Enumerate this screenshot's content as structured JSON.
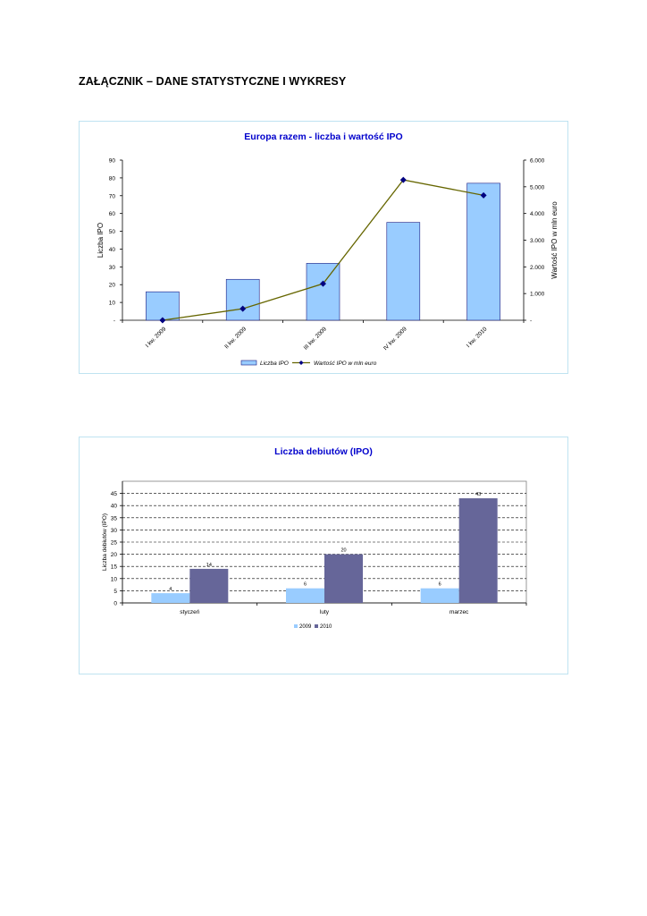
{
  "page": {
    "heading": "ZAŁĄCZNIK – DANE STATYSTYCZNE I WYKRESY"
  },
  "chart_data": [
    {
      "type": "bar+line",
      "title": "Europa razem - liczba i wartość IPO",
      "categories": [
        "I kw. 2009",
        "II kw. 2009",
        "III kw. 2009",
        "IV kw. 2009",
        "I kw. 2010"
      ],
      "series": [
        {
          "name": "Liczba IPO",
          "type": "bar",
          "axis": "left",
          "values": [
            16,
            23,
            32,
            55,
            77
          ],
          "color": "#99ccff"
        },
        {
          "name": "Wartość IPO w mln euro",
          "type": "line",
          "axis": "right",
          "values": [
            0,
            430,
            1370,
            5260,
            4680
          ],
          "color": "#666600",
          "marker_color": "#000080"
        }
      ],
      "ylabel": "Liczba IPO",
      "ylabel_right": "Wartość IPO w mln euro",
      "ylim": [
        0,
        90
      ],
      "ylim_right": [
        0,
        6000
      ],
      "yticks": [
        "-",
        "10",
        "20",
        "30",
        "40",
        "50",
        "60",
        "70",
        "80",
        "90"
      ],
      "yticks_right": [
        "-",
        "1.000",
        "2.000",
        "3.000",
        "4.000",
        "5.000",
        "6.000"
      ],
      "grid": false,
      "legend": "bottom",
      "title_color": "#0000cc"
    },
    {
      "type": "bar",
      "title": "Liczba debiutów (IPO)",
      "categories": [
        "styczeń",
        "luty",
        "marzec"
      ],
      "series": [
        {
          "name": "2009",
          "values": [
            4,
            6,
            6
          ],
          "color": "#99ccff"
        },
        {
          "name": "2010",
          "values": [
            14,
            20,
            43
          ],
          "color": "#666699"
        }
      ],
      "ylabel": "Liczba debiutów (IPO)",
      "ylim": [
        0,
        50
      ],
      "yticks": [
        "0",
        "5",
        "10",
        "15",
        "20",
        "25",
        "30",
        "35",
        "40",
        "45"
      ],
      "grid": true,
      "legend": "bottom",
      "title_color": "#0000cc"
    }
  ]
}
